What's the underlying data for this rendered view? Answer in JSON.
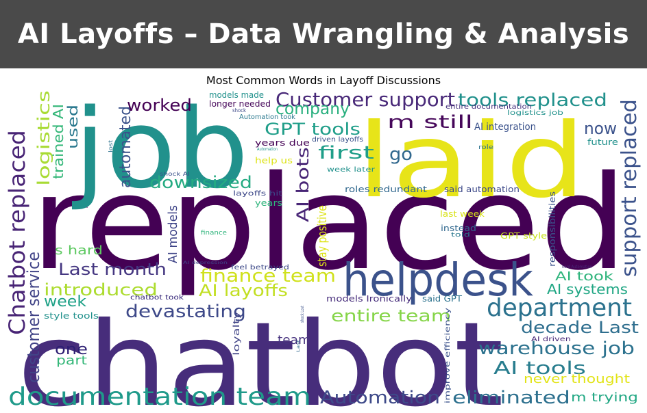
{
  "header": {
    "title": "AI Layoffs – Data Wrangling & Analysis"
  },
  "figure": {
    "title": "Most Common Words in Layoff Discussions",
    "palette": {
      "dark_purple": "#440154",
      "indigo": "#3b528b",
      "teal": "#21918c",
      "green": "#5ec962",
      "yellow": "#fde725"
    }
  },
  "words": [
    {
      "text": "chatbot",
      "color": "#472d7b"
    },
    {
      "text": "replaced",
      "color": "#440154"
    },
    {
      "text": "job",
      "color": "#21918c"
    },
    {
      "text": "laid",
      "color": "#e7e419"
    },
    {
      "text": "helpdesk",
      "color": "#3b528b"
    },
    {
      "text": "department",
      "color": "#2c728e"
    },
    {
      "text": "documentation team",
      "color": "#1f9a8a"
    },
    {
      "text": "Chatbot replaced",
      "color": "#482475"
    },
    {
      "text": "support replaced",
      "color": "#3b528b"
    },
    {
      "text": "Customer support",
      "color": "#482878"
    },
    {
      "text": "tools replaced",
      "color": "#21918c"
    },
    {
      "text": "warehouse job",
      "color": "#2c728e"
    },
    {
      "text": "customer service",
      "color": "#414487"
    },
    {
      "text": "AI tools",
      "color": "#287d8e"
    },
    {
      "text": "Automation",
      "color": "#3e4a89"
    },
    {
      "text": "eliminated",
      "color": "#2d708e"
    },
    {
      "text": "finance team",
      "color": "#d0e11c"
    },
    {
      "text": "AI layoffs",
      "color": "#c2df23"
    },
    {
      "text": "entire team",
      "color": "#86d549"
    },
    {
      "text": "devastating",
      "color": "#3e4989"
    },
    {
      "text": "decade Last",
      "color": "#2e6e8e"
    },
    {
      "text": "Last month",
      "color": "#453781"
    },
    {
      "text": "introduced",
      "color": "#addc30"
    },
    {
      "text": "logistics",
      "color": "#a8db34"
    },
    {
      "text": "trained AI",
      "color": "#35b779"
    },
    {
      "text": "used",
      "color": "#2a788e"
    },
    {
      "text": "automated",
      "color": "#3b528b"
    },
    {
      "text": "worked",
      "color": "#440154"
    },
    {
      "text": "company",
      "color": "#2ab07f"
    },
    {
      "text": "GPT tools",
      "color": "#1f9e89"
    },
    {
      "text": "first",
      "color": "#1f9e89"
    },
    {
      "text": "go",
      "color": "#31688e"
    },
    {
      "text": "m still",
      "color": "#46075a"
    },
    {
      "text": "now",
      "color": "#3b528b"
    },
    {
      "text": "downsized",
      "color": "#25ab82"
    },
    {
      "text": "AI bots",
      "color": "#482576"
    },
    {
      "text": "stay positive",
      "color": "#dde318"
    },
    {
      "text": "s hard",
      "color": "#5ec962"
    },
    {
      "text": "AI models",
      "color": "#404688"
    },
    {
      "text": "week",
      "color": "#1fa187"
    },
    {
      "text": "one",
      "color": "#2d1e73"
    },
    {
      "text": "part",
      "color": "#35b779"
    },
    {
      "text": "AI took",
      "color": "#2fb47c"
    },
    {
      "text": "AI systems",
      "color": "#22a785"
    },
    {
      "text": "team",
      "color": "#46327e"
    },
    {
      "text": "never thought",
      "color": "#e2e418"
    },
    {
      "text": "m trying",
      "color": "#22a884"
    },
    {
      "text": "AI integration",
      "color": "#3b528b"
    },
    {
      "text": "future",
      "color": "#21918c"
    },
    {
      "text": "role",
      "color": "#2c728e"
    },
    {
      "text": "said automation",
      "color": "#3e4a89"
    },
    {
      "text": "roles redundant",
      "color": "#31688e"
    },
    {
      "text": "week later",
      "color": "#21918c"
    },
    {
      "text": "driven layoffs",
      "color": "#3b528b"
    },
    {
      "text": "years due",
      "color": "#440154"
    },
    {
      "text": "help us",
      "color": "#dde318"
    },
    {
      "text": "layoffs hit",
      "color": "#3e4989"
    },
    {
      "text": "years",
      "color": "#2fb47c"
    },
    {
      "text": "last week",
      "color": "#d8e219"
    },
    {
      "text": "instead",
      "color": "#31688e"
    },
    {
      "text": "told",
      "color": "#2a788e"
    },
    {
      "text": "GPT style",
      "color": "#c8e020"
    },
    {
      "text": "responsibilities",
      "color": "#3b528b"
    },
    {
      "text": "feel betrayed",
      "color": "#3e4a89"
    },
    {
      "text": "chatbot took",
      "color": "#2d1e73"
    },
    {
      "text": "models Ironically",
      "color": "#472d7b"
    },
    {
      "text": "said GPT",
      "color": "#2c728e"
    },
    {
      "text": "style tools",
      "color": "#21918c"
    },
    {
      "text": "loyalty",
      "color": "#414487"
    },
    {
      "text": "improve efficiency",
      "color": "#3b528b"
    },
    {
      "text": "AI driven",
      "color": "#482878"
    },
    {
      "text": "hard Automation",
      "color": "#482878"
    },
    {
      "text": "logistics job",
      "color": "#21918c"
    },
    {
      "text": "entire documentation",
      "color": "#46327e"
    },
    {
      "text": "models made",
      "color": "#21918c"
    },
    {
      "text": "longer needed",
      "color": "#46075a"
    },
    {
      "text": "Automation took",
      "color": "#2a788e"
    },
    {
      "text": "shock",
      "color": "#3e4a89"
    },
    {
      "text": "shock AI",
      "color": "#3b528b"
    },
    {
      "text": "Automation",
      "color": "#21918c"
    },
    {
      "text": "lost",
      "color": "#2c728e"
    },
    {
      "text": "finance",
      "color": "#2fb47c"
    },
    {
      "text": "shock Lost",
      "color": "#3b528b"
    },
    {
      "text": "AI depression",
      "color": "#414487"
    },
    {
      "text": "Last",
      "color": "#31688e"
    }
  ]
}
